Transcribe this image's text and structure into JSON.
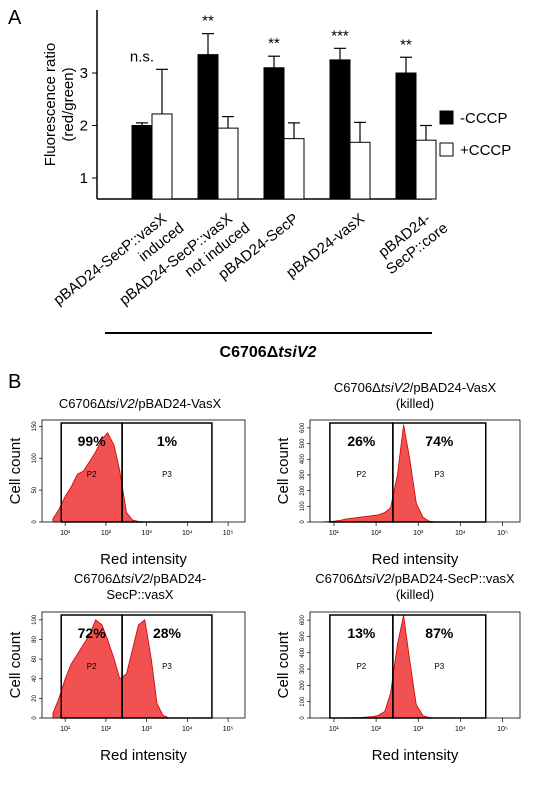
{
  "panels": [
    "A",
    "B"
  ],
  "chart_data": [
    {
      "type": "bar",
      "y_label": [
        "Fluorescence ratio",
        "(red/green)"
      ],
      "categories": [
        [
          "pBAD24-SecP::vasX",
          "induced"
        ],
        [
          "pBAD24-SecP::vasX",
          "not induced"
        ],
        [
          "pBAD24-SecP"
        ],
        [
          "pBAD24-vasX"
        ],
        [
          "pBAD24-",
          "SecP::core"
        ]
      ],
      "group_label": [
        "C6706Δ",
        "tsiV2"
      ],
      "series": [
        {
          "name": "-CCCP",
          "color": "#000000",
          "values": [
            2.0,
            3.35,
            3.1,
            3.25,
            3.0
          ],
          "errors": [
            0.05,
            0.4,
            0.22,
            0.22,
            0.3
          ]
        },
        {
          "name": "+CCCP",
          "color": "#ffffff",
          "values": [
            2.22,
            1.95,
            1.75,
            1.68,
            1.72
          ],
          "errors": [
            0.85,
            0.22,
            0.3,
            0.38,
            0.28
          ]
        }
      ],
      "annotations": [
        "n.s.",
        "**",
        "**",
        "***",
        "**"
      ],
      "ylim": [
        0.6,
        4.2
      ],
      "yticks": [
        1,
        2,
        3
      ],
      "legend": "right"
    },
    {
      "type": "histogram",
      "title": [
        "C6706Δ",
        "tsiV2",
        "/pBAD24-VasX"
      ],
      "y_label": "Cell count",
      "x_label": "Red intensity",
      "color": "#ee3333",
      "log": true,
      "x": [
        5,
        7,
        10,
        14,
        20,
        28,
        40,
        56,
        80,
        110,
        160,
        220,
        320,
        450,
        630,
        900,
        1300,
        1800,
        2500,
        3500,
        5000
      ],
      "values": [
        5,
        20,
        40,
        55,
        75,
        80,
        95,
        110,
        130,
        140,
        120,
        80,
        15,
        3,
        1,
        0,
        0,
        0,
        0,
        0,
        0
      ],
      "gates": [
        {
          "name": "P2",
          "range": [
            8,
            250
          ],
          "label": "99%"
        },
        {
          "name": "P3",
          "range": [
            250,
            40000
          ],
          "label": "1%"
        }
      ],
      "xlim": [
        2.7,
        260000
      ],
      "xticks": [
        {
          "value": 10,
          "label": "10¹"
        },
        {
          "value": 100,
          "label": "10²"
        },
        {
          "value": 1000,
          "label": "10³"
        },
        {
          "value": 10000,
          "label": "10⁴"
        },
        {
          "value": 100000,
          "label": "10⁵"
        }
      ],
      "ylim": [
        0,
        160
      ],
      "yticks": [
        0,
        50,
        100,
        150
      ]
    },
    {
      "type": "histogram",
      "title": [
        "C6706Δ",
        "tsiV2",
        "/pBAD24-VasX"
      ],
      "subtitle": "(killed)",
      "y_label": "Cell count",
      "x_label": "Red intensity",
      "color": "#ee3333",
      "log": true,
      "x": [
        5,
        7,
        10,
        14,
        20,
        28,
        40,
        56,
        80,
        110,
        160,
        220,
        320,
        450,
        630,
        900,
        1300,
        1800,
        2500,
        3500,
        5000
      ],
      "values": [
        0,
        2,
        5,
        10,
        20,
        25,
        30,
        35,
        40,
        45,
        60,
        90,
        300,
        620,
        400,
        120,
        30,
        5,
        1,
        0,
        0
      ],
      "gates": [
        {
          "name": "P2",
          "range": [
            8,
            250
          ],
          "label": "26%"
        },
        {
          "name": "P3",
          "range": [
            250,
            40000
          ],
          "label": "74%"
        }
      ],
      "xlim": [
        2.7,
        260000
      ],
      "xticks": [
        {
          "value": 10,
          "label": "10¹"
        },
        {
          "value": 100,
          "label": "10²"
        },
        {
          "value": 1000,
          "label": "10³"
        },
        {
          "value": 10000,
          "label": "10⁴"
        },
        {
          "value": 100000,
          "label": "10⁵"
        }
      ],
      "ylim": [
        0,
        650
      ],
      "yticks": [
        0,
        100,
        200,
        300,
        400,
        500,
        600
      ]
    },
    {
      "type": "histogram",
      "title": [
        "C6706Δ",
        "tsiV2",
        "/pBAD24-"
      ],
      "subtitle": "SecP::vasX",
      "y_label": "Cell count",
      "x_label": "Red intensity",
      "color": "#ee3333",
      "log": true,
      "x": [
        5,
        7,
        10,
        14,
        20,
        28,
        40,
        56,
        80,
        110,
        160,
        220,
        320,
        450,
        630,
        900,
        1300,
        1800,
        2500,
        3500,
        5000
      ],
      "values": [
        5,
        20,
        40,
        55,
        65,
        75,
        85,
        100,
        95,
        80,
        60,
        40,
        45,
        70,
        95,
        100,
        60,
        15,
        3,
        0,
        0
      ],
      "gates": [
        {
          "name": "P2",
          "range": [
            8,
            250
          ],
          "label": "72%"
        },
        {
          "name": "P3",
          "range": [
            250,
            40000
          ],
          "label": "28%"
        }
      ],
      "xlim": [
        2.7,
        260000
      ],
      "xticks": [
        {
          "value": 10,
          "label": "10¹"
        },
        {
          "value": 100,
          "label": "10²"
        },
        {
          "value": 1000,
          "label": "10³"
        },
        {
          "value": 10000,
          "label": "10⁴"
        },
        {
          "value": 100000,
          "label": "10⁵"
        }
      ],
      "ylim": [
        0,
        108
      ],
      "yticks": [
        0,
        20,
        40,
        60,
        80,
        100
      ]
    },
    {
      "type": "histogram",
      "title": [
        "C6706Δ",
        "tsiV2",
        "/pBAD24-SecP::vasX"
      ],
      "subtitle": "(killed)",
      "y_label": "Cell count",
      "x_label": "Red intensity",
      "color": "#ee3333",
      "log": true,
      "x": [
        5,
        7,
        10,
        14,
        20,
        28,
        40,
        56,
        80,
        110,
        160,
        220,
        320,
        450,
        630,
        900,
        1300,
        1800,
        2500,
        3500,
        5000
      ],
      "values": [
        0,
        0,
        0,
        0,
        1,
        2,
        3,
        5,
        8,
        15,
        40,
        150,
        450,
        630,
        350,
        80,
        15,
        3,
        0,
        0,
        0
      ],
      "gates": [
        {
          "name": "P2",
          "range": [
            8,
            250
          ],
          "label": "13%"
        },
        {
          "name": "P3",
          "range": [
            250,
            40000
          ],
          "label": "87%"
        }
      ],
      "xlim": [
        2.7,
        260000
      ],
      "xticks": [
        {
          "value": 10,
          "label": "10¹"
        },
        {
          "value": 100,
          "label": "10²"
        },
        {
          "value": 1000,
          "label": "10³"
        },
        {
          "value": 10000,
          "label": "10⁴"
        },
        {
          "value": 100000,
          "label": "10⁵"
        }
      ],
      "ylim": [
        0,
        650
      ],
      "yticks": [
        0,
        100,
        200,
        300,
        400,
        500,
        600
      ]
    }
  ]
}
